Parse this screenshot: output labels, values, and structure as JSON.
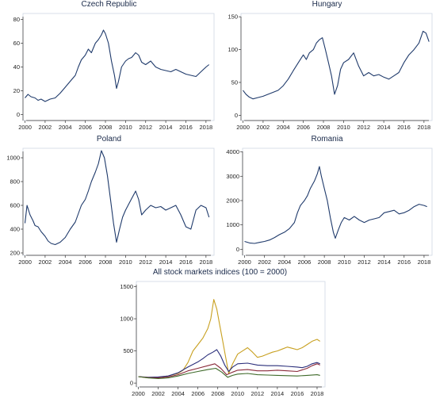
{
  "chart_data": [
    {
      "type": "line",
      "title": "Czech Republic",
      "xlabel": "",
      "ylabel": "",
      "xlim": [
        1999.8,
        2018.8
      ],
      "ylim": [
        -5,
        85
      ],
      "xticks": [
        2000,
        2002,
        2004,
        2006,
        2008,
        2010,
        2012,
        2014,
        2016,
        2018
      ],
      "yticks": [
        0,
        20,
        40,
        60,
        80
      ],
      "grid": false,
      "series": [
        {
          "color": "#1f3a6b",
          "x": [
            2000.0,
            2000.3,
            2000.6,
            2001.0,
            2001.3,
            2001.6,
            2002.0,
            2002.5,
            2003.0,
            2003.5,
            2004.0,
            2004.5,
            2005.0,
            2005.3,
            2005.6,
            2006.0,
            2006.3,
            2006.6,
            2007.0,
            2007.3,
            2007.6,
            2007.8,
            2008.0,
            2008.3,
            2008.6,
            2008.9,
            2009.1,
            2009.3,
            2009.6,
            2010.0,
            2010.3,
            2010.6,
            2011.0,
            2011.3,
            2011.6,
            2012.0,
            2012.5,
            2013.0,
            2013.5,
            2014.0,
            2014.5,
            2015.0,
            2015.5,
            2016.0,
            2016.5,
            2017.0,
            2017.5,
            2018.0,
            2018.3
          ],
          "y": [
            14,
            17,
            15,
            14,
            12,
            13,
            11,
            13,
            14,
            18,
            23,
            28,
            33,
            40,
            46,
            50,
            55,
            52,
            60,
            63,
            67,
            71,
            68,
            60,
            45,
            33,
            22,
            28,
            40,
            45,
            47,
            48,
            52,
            50,
            44,
            42,
            45,
            40,
            38,
            37,
            36,
            38,
            36,
            34,
            33,
            32,
            36,
            40,
            42
          ]
        }
      ]
    },
    {
      "type": "line",
      "title": "Hungary",
      "xlabel": "",
      "ylabel": "",
      "xlim": [
        1999.8,
        2018.8
      ],
      "ylim": [
        -8,
        155
      ],
      "xticks": [
        2000,
        2002,
        2004,
        2006,
        2008,
        2010,
        2012,
        2014,
        2016,
        2018
      ],
      "yticks": [
        0,
        50,
        100,
        150
      ],
      "grid": false,
      "series": [
        {
          "color": "#1f3a6b",
          "x": [
            2000.0,
            2000.3,
            2000.6,
            2001.0,
            2001.5,
            2002.0,
            2002.5,
            2003.0,
            2003.5,
            2004.0,
            2004.5,
            2005.0,
            2005.5,
            2006.0,
            2006.3,
            2006.6,
            2007.0,
            2007.3,
            2007.6,
            2007.9,
            2008.2,
            2008.5,
            2008.8,
            2009.1,
            2009.4,
            2009.7,
            2010.0,
            2010.5,
            2011.0,
            2011.5,
            2012.0,
            2012.5,
            2013.0,
            2013.5,
            2014.0,
            2014.5,
            2015.0,
            2015.5,
            2016.0,
            2016.5,
            2017.0,
            2017.5,
            2017.9,
            2018.2,
            2018.5
          ],
          "y": [
            38,
            32,
            28,
            25,
            27,
            29,
            32,
            35,
            38,
            45,
            55,
            68,
            80,
            92,
            85,
            95,
            100,
            110,
            115,
            118,
            100,
            80,
            60,
            32,
            45,
            70,
            80,
            85,
            95,
            75,
            60,
            65,
            60,
            62,
            58,
            55,
            60,
            65,
            80,
            92,
            100,
            110,
            128,
            125,
            112
          ]
        }
      ]
    },
    {
      "type": "line",
      "title": "Poland",
      "xlabel": "",
      "ylabel": "",
      "xlim": [
        1999.8,
        2018.8
      ],
      "ylim": [
        180,
        1080
      ],
      "xticks": [
        2000,
        2002,
        2004,
        2006,
        2008,
        2010,
        2012,
        2014,
        2016,
        2018
      ],
      "yticks": [
        200,
        400,
        600,
        800,
        1000
      ],
      "grid": false,
      "series": [
        {
          "color": "#1f3a6b",
          "x": [
            2000.0,
            2000.2,
            2000.5,
            2000.8,
            2001.0,
            2001.3,
            2001.6,
            2002.0,
            2002.3,
            2002.6,
            2003.0,
            2003.5,
            2004.0,
            2004.5,
            2005.0,
            2005.3,
            2005.6,
            2006.0,
            2006.3,
            2006.6,
            2007.0,
            2007.3,
            2007.6,
            2007.9,
            2008.2,
            2008.5,
            2008.8,
            2009.1,
            2009.4,
            2009.7,
            2010.0,
            2010.5,
            2011.0,
            2011.3,
            2011.6,
            2012.0,
            2012.5,
            2013.0,
            2013.5,
            2014.0,
            2014.5,
            2015.0,
            2015.5,
            2016.0,
            2016.5,
            2017.0,
            2017.5,
            2018.0,
            2018.3
          ],
          "y": [
            450,
            600,
            520,
            470,
            430,
            420,
            380,
            340,
            300,
            280,
            270,
            290,
            330,
            400,
            460,
            530,
            600,
            650,
            720,
            800,
            880,
            950,
            1060,
            1000,
            850,
            650,
            450,
            290,
            400,
            500,
            560,
            640,
            720,
            650,
            520,
            560,
            600,
            580,
            590,
            560,
            580,
            600,
            520,
            420,
            400,
            560,
            600,
            580,
            500
          ]
        }
      ]
    },
    {
      "type": "line",
      "title": "Romania",
      "xlabel": "",
      "ylabel": "",
      "xlim": [
        1999.8,
        2018.8
      ],
      "ylim": [
        -250,
        4150
      ],
      "xticks": [
        2000,
        2002,
        2004,
        2006,
        2008,
        2010,
        2012,
        2014,
        2016,
        2018
      ],
      "yticks": [
        0,
        1000,
        2000,
        3000,
        4000
      ],
      "grid": false,
      "series": [
        {
          "color": "#1f3a6b",
          "x": [
            2000.0,
            2000.5,
            2001.0,
            2001.5,
            2002.0,
            2002.5,
            2003.0,
            2003.5,
            2004.0,
            2004.5,
            2005.0,
            2005.3,
            2005.6,
            2006.0,
            2006.3,
            2006.6,
            2007.0,
            2007.3,
            2007.5,
            2007.7,
            2008.0,
            2008.3,
            2008.6,
            2008.9,
            2009.1,
            2009.4,
            2009.7,
            2010.0,
            2010.5,
            2011.0,
            2011.5,
            2012.0,
            2012.5,
            2013.0,
            2013.5,
            2014.0,
            2014.5,
            2015.0,
            2015.5,
            2016.0,
            2016.5,
            2017.0,
            2017.5,
            2018.0,
            2018.3
          ],
          "y": [
            320,
            260,
            240,
            280,
            320,
            380,
            480,
            600,
            700,
            850,
            1100,
            1500,
            1800,
            2000,
            2200,
            2500,
            2800,
            3100,
            3400,
            3000,
            2500,
            2000,
            1300,
            700,
            450,
            800,
            1100,
            1300,
            1200,
            1350,
            1200,
            1100,
            1200,
            1250,
            1300,
            1500,
            1550,
            1600,
            1450,
            1500,
            1600,
            1750,
            1850,
            1800,
            1750
          ]
        }
      ]
    },
    {
      "type": "line",
      "title": "All stock markets indices (100 = 2000)",
      "xlabel": "",
      "ylabel": "",
      "xlim": [
        1999.8,
        2018.8
      ],
      "ylim": [
        -60,
        1580
      ],
      "xticks": [
        2000,
        2002,
        2004,
        2006,
        2008,
        2010,
        2012,
        2014,
        2016,
        2018
      ],
      "yticks": [
        0,
        500,
        1000,
        1500
      ],
      "grid": false,
      "series": [
        {
          "color": "#c8a020",
          "x": [
            2000.0,
            2001.0,
            2002.0,
            2003.0,
            2004.0,
            2004.5,
            2005.0,
            2005.5,
            2006.0,
            2006.5,
            2007.0,
            2007.3,
            2007.6,
            2007.9,
            2008.2,
            2008.5,
            2008.8,
            2009.1,
            2009.5,
            2010.0,
            2010.5,
            2011.0,
            2011.5,
            2012.0,
            2012.5,
            2013.0,
            2013.5,
            2014.0,
            2014.5,
            2015.0,
            2015.5,
            2016.0,
            2016.5,
            2017.0,
            2017.5,
            2018.0,
            2018.3
          ],
          "x_note": "",
          "y": [
            100,
            80,
            90,
            110,
            150,
            200,
            320,
            500,
            600,
            700,
            850,
            1000,
            1300,
            1150,
            900,
            650,
            400,
            150,
            300,
            450,
            500,
            550,
            480,
            400,
            420,
            450,
            480,
            500,
            530,
            560,
            540,
            520,
            550,
            600,
            650,
            680,
            650
          ]
        },
        {
          "color": "#2a2e7a",
          "x": [
            2000.0,
            2001.0,
            2002.0,
            2003.0,
            2004.0,
            2005.0,
            2006.0,
            2006.5,
            2007.0,
            2007.5,
            2007.9,
            2008.3,
            2008.7,
            2009.1,
            2009.5,
            2010.0,
            2011.0,
            2012.0,
            2013.0,
            2014.0,
            2015.0,
            2016.0,
            2016.5,
            2017.0,
            2017.5,
            2018.0,
            2018.3
          ],
          "y": [
            100,
            90,
            95,
            110,
            160,
            250,
            330,
            380,
            440,
            480,
            520,
            420,
            280,
            180,
            250,
            300,
            310,
            280,
            270,
            270,
            260,
            250,
            240,
            260,
            300,
            320,
            300
          ]
        },
        {
          "color": "#8a2a3a",
          "x": [
            2000.0,
            2001.0,
            2002.0,
            2003.0,
            2004.0,
            2005.0,
            2006.0,
            2007.0,
            2007.7,
            2008.3,
            2008.9,
            2009.5,
            2010.0,
            2011.0,
            2012.0,
            2013.0,
            2014.0,
            2015.0,
            2016.0,
            2017.0,
            2017.5,
            2018.0,
            2018.3
          ],
          "y": [
            100,
            85,
            80,
            95,
            130,
            190,
            230,
            270,
            300,
            230,
            130,
            170,
            200,
            210,
            190,
            190,
            200,
            190,
            180,
            230,
            270,
            300,
            280
          ]
        },
        {
          "color": "#3f6a2a",
          "x": [
            2000.0,
            2001.0,
            2002.0,
            2003.0,
            2004.0,
            2005.0,
            2006.0,
            2007.0,
            2007.8,
            2008.4,
            2009.0,
            2009.5,
            2010.0,
            2011.0,
            2012.0,
            2013.0,
            2014.0,
            2015.0,
            2016.0,
            2017.0,
            2018.0,
            2018.3
          ],
          "y": [
            100,
            80,
            70,
            80,
            110,
            150,
            180,
            210,
            230,
            170,
            90,
            120,
            140,
            150,
            130,
            125,
            120,
            115,
            110,
            120,
            130,
            120
          ]
        }
      ]
    }
  ]
}
